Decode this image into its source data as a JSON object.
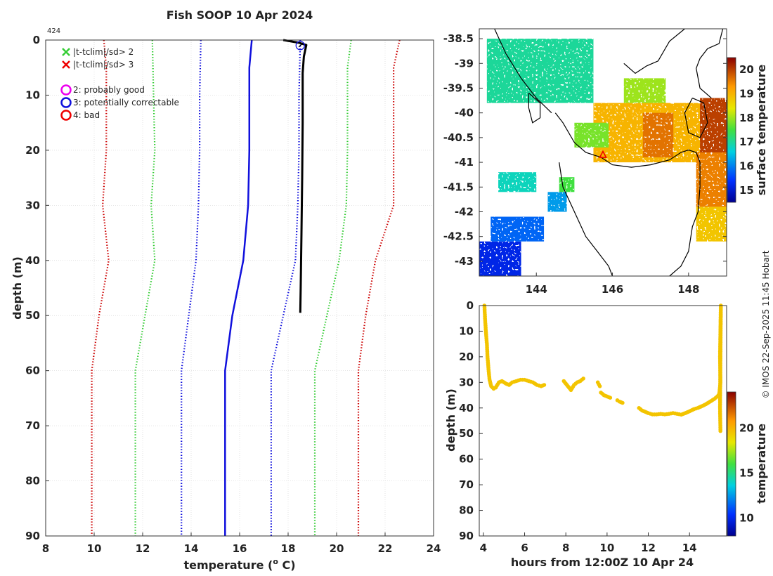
{
  "profile_id": "424",
  "credit": "© IMOS 22-Sep-2025 11:45 Hobart",
  "colors": {
    "bright_red": "#ff0000",
    "dark_red": "#cc0000",
    "green": "#33cc33",
    "blue": "#1010dd",
    "magenta": "#ee00ee",
    "black": "#000000",
    "yellow": "#e8e800"
  },
  "chart_data": [
    {
      "id": "profile",
      "type": "line",
      "title": "Fish SOOP 10 Apr 2024",
      "xlabel": "temperature (",
      "xlabel_sup": "o",
      "xlabel_end": " C)",
      "ylabel": "depth (m)",
      "xlim": [
        8,
        24
      ],
      "ylim": [
        0,
        90
      ],
      "xticks": [
        8,
        10,
        12,
        14,
        16,
        18,
        20,
        22,
        24
      ],
      "yticks": [
        0,
        10,
        20,
        30,
        40,
        50,
        60,
        70,
        80,
        90
      ],
      "grid": true,
      "legend": [
        {
          "marker": "x",
          "color": "#33cc33",
          "label": "|t-tclim|/sd> 2"
        },
        {
          "marker": "x",
          "color": "#ee0000",
          "label": "|t-tclim|/sd> 3"
        },
        {
          "marker": "o",
          "color": "#ee00ee",
          "label": "2: probably good"
        },
        {
          "marker": "o",
          "color": "#1010dd",
          "label": "3: potentially correctable"
        },
        {
          "marker": "o",
          "color": "#ee0000",
          "label": "4: bad"
        }
      ],
      "series": [
        {
          "name": "climatology mean",
          "style": "solid",
          "color": "#1010dd",
          "points": [
            [
              16.5,
              0
            ],
            [
              16.4,
              5
            ],
            [
              16.4,
              15
            ],
            [
              16.4,
              20
            ],
            [
              16.35,
              30
            ],
            [
              16.15,
              40
            ],
            [
              15.7,
              50
            ],
            [
              15.4,
              60
            ],
            [
              15.4,
              90
            ]
          ]
        },
        {
          "name": "clim -1sd",
          "style": "dotted",
          "color": "#1010dd",
          "points": [
            [
              14.4,
              0
            ],
            [
              14.35,
              10
            ],
            [
              14.35,
              20
            ],
            [
              14.3,
              30
            ],
            [
              14.2,
              40
            ],
            [
              13.9,
              50
            ],
            [
              13.6,
              60
            ],
            [
              13.6,
              90
            ]
          ]
        },
        {
          "name": "clim +1sd",
          "style": "dotted",
          "color": "#1010dd",
          "points": [
            [
              18.5,
              0
            ],
            [
              18.45,
              10
            ],
            [
              18.45,
              20
            ],
            [
              18.4,
              30
            ],
            [
              18.3,
              40
            ],
            [
              17.8,
              50
            ],
            [
              17.3,
              60
            ],
            [
              17.3,
              90
            ]
          ]
        },
        {
          "name": "clim -2sd",
          "style": "dotted",
          "color": "#33cc33",
          "points": [
            [
              12.4,
              0
            ],
            [
              12.45,
              10
            ],
            [
              12.5,
              20
            ],
            [
              12.35,
              30
            ],
            [
              12.5,
              40
            ],
            [
              12.1,
              50
            ],
            [
              11.7,
              60
            ],
            [
              11.7,
              90
            ]
          ]
        },
        {
          "name": "clim +2sd",
          "style": "dotted",
          "color": "#33cc33",
          "points": [
            [
              20.6,
              0
            ],
            [
              20.45,
              5
            ],
            [
              20.45,
              20
            ],
            [
              20.4,
              30
            ],
            [
              20.1,
              40
            ],
            [
              19.6,
              50
            ],
            [
              19.1,
              60
            ],
            [
              19.1,
              90
            ]
          ]
        },
        {
          "name": "clim -3sd",
          "style": "dotted",
          "color": "#cc0000",
          "points": [
            [
              10.4,
              0
            ],
            [
              10.5,
              5
            ],
            [
              10.5,
              20
            ],
            [
              10.35,
              30
            ],
            [
              10.6,
              40
            ],
            [
              10.2,
              50
            ],
            [
              9.9,
              60
            ],
            [
              9.9,
              90
            ]
          ]
        },
        {
          "name": "clim +3sd",
          "style": "dotted",
          "color": "#cc0000",
          "points": [
            [
              22.6,
              0
            ],
            [
              22.35,
              5
            ],
            [
              22.35,
              20
            ],
            [
              22.35,
              30
            ],
            [
              21.6,
              40
            ],
            [
              21.2,
              50
            ],
            [
              20.9,
              60
            ],
            [
              20.9,
              90
            ]
          ]
        },
        {
          "name": "observed profile",
          "style": "solid",
          "color": "#000000",
          "points": [
            [
              17.8,
              0
            ],
            [
              18.45,
              0.5
            ],
            [
              18.75,
              0.9
            ],
            [
              18.65,
              3
            ],
            [
              18.6,
              6
            ],
            [
              18.6,
              15
            ],
            [
              18.58,
              25
            ],
            [
              18.55,
              35
            ],
            [
              18.52,
              45
            ],
            [
              18.5,
              49.5
            ]
          ]
        }
      ],
      "flag_marker": {
        "flag": "3: potentially correctable",
        "x": 18.5,
        "y": 1
      }
    },
    {
      "id": "sst_map",
      "type": "heatmap",
      "xlim": [
        142.5,
        149
      ],
      "ylim": [
        -43.3,
        -38.3
      ],
      "xticks": [
        144,
        146,
        148
      ],
      "yticks": [
        -38.5,
        -39,
        -39.5,
        -40,
        -40.5,
        -41,
        -41.5,
        -42,
        -42.5,
        -43
      ],
      "colorbar_label": "surface temperature",
      "colorbar_range": [
        14.5,
        20.5
      ],
      "colorbar_ticks": [
        15,
        16,
        17,
        18,
        19,
        20
      ],
      "profile_location": [
        145.75,
        -40.85
      ],
      "coastline": [
        [
          [
            146.3,
            -39.0
          ],
          [
            146.6,
            -39.2
          ],
          [
            146.9,
            -39.05
          ],
          [
            147.2,
            -38.95
          ],
          [
            147.5,
            -38.55
          ],
          [
            147.9,
            -38.3
          ]
        ],
        [
          [
            148.9,
            -38.3
          ],
          [
            148.8,
            -38.6
          ],
          [
            148.5,
            -38.7
          ],
          [
            148.3,
            -38.9
          ],
          [
            148.2,
            -39.1
          ],
          [
            148.3,
            -39.5
          ],
          [
            148.6,
            -39.7
          ]
        ],
        [
          [
            144.5,
            -40.0
          ],
          [
            144.7,
            -40.2
          ],
          [
            145.0,
            -40.6
          ],
          [
            145.3,
            -40.8
          ],
          [
            145.7,
            -40.9
          ],
          [
            146.0,
            -41.05
          ],
          [
            146.5,
            -41.1
          ],
          [
            147.0,
            -41.05
          ],
          [
            147.5,
            -40.95
          ],
          [
            147.8,
            -40.8
          ],
          [
            148.0,
            -40.75
          ],
          [
            148.2,
            -40.8
          ],
          [
            148.3,
            -41.0
          ],
          [
            148.3,
            -41.5
          ],
          [
            148.25,
            -42.0
          ],
          [
            148.1,
            -42.3
          ],
          [
            148.0,
            -42.8
          ],
          [
            147.8,
            -43.1
          ],
          [
            147.5,
            -43.3
          ]
        ],
        [
          [
            144.6,
            -41.0
          ],
          [
            144.7,
            -41.5
          ],
          [
            145.0,
            -42.0
          ],
          [
            145.3,
            -42.5
          ],
          [
            145.6,
            -42.8
          ],
          [
            145.9,
            -43.1
          ],
          [
            146.0,
            -43.3
          ]
        ],
        [
          [
            142.9,
            -38.3
          ],
          [
            143.2,
            -38.8
          ],
          [
            143.6,
            -39.3
          ],
          [
            144.0,
            -39.7
          ],
          [
            144.4,
            -40.0
          ]
        ],
        [
          [
            143.8,
            -39.6
          ],
          [
            144.1,
            -39.8
          ],
          [
            144.1,
            -40.1
          ],
          [
            143.9,
            -40.2
          ],
          [
            143.8,
            -39.9
          ],
          [
            143.8,
            -39.6
          ]
        ],
        [
          [
            148.1,
            -39.7
          ],
          [
            148.4,
            -39.8
          ],
          [
            148.5,
            -40.2
          ],
          [
            148.3,
            -40.5
          ],
          [
            148.0,
            -40.4
          ],
          [
            147.9,
            -40.0
          ],
          [
            148.1,
            -39.7
          ]
        ]
      ],
      "sst_patches": [
        {
          "lon": [
            145.5,
            148.6
          ],
          "lat": [
            -41.0,
            -39.8
          ],
          "value": 19.0
        },
        {
          "lon": [
            146.8,
            147.6
          ],
          "lat": [
            -40.9,
            -40.0
          ],
          "value": 19.6
        },
        {
          "lon": [
            148.3,
            149.0
          ],
          "lat": [
            -40.8,
            -39.7
          ],
          "value": 20.0
        },
        {
          "lon": [
            148.2,
            149.0
          ],
          "lat": [
            -41.9,
            -40.8
          ],
          "value": 19.5
        },
        {
          "lon": [
            148.2,
            149.0
          ],
          "lat": [
            -42.6,
            -41.9
          ],
          "value": 18.8
        },
        {
          "lon": [
            146.3,
            147.4
          ],
          "lat": [
            -39.8,
            -39.3
          ],
          "value": 18.0
        },
        {
          "lon": [
            145.0,
            145.9
          ],
          "lat": [
            -40.7,
            -40.2
          ],
          "value": 17.8
        },
        {
          "lon": [
            144.3,
            144.8
          ],
          "lat": [
            -42.0,
            -41.6
          ],
          "value": 16.2
        },
        {
          "lon": [
            144.6,
            145.0
          ],
          "lat": [
            -41.6,
            -41.3
          ],
          "value": 17.5
        },
        {
          "lon": [
            142.5,
            143.6
          ],
          "lat": [
            -43.3,
            -42.6
          ],
          "value": 15.2
        },
        {
          "lon": [
            142.8,
            144.2
          ],
          "lat": [
            -42.6,
            -42.1
          ],
          "value": 15.8
        },
        {
          "lon": [
            143.0,
            144.0
          ],
          "lat": [
            -41.6,
            -41.2
          ],
          "value": 16.8
        },
        {
          "lon": [
            142.7,
            145.5
          ],
          "lat": [
            -39.8,
            -38.5
          ],
          "value": 17.0
        }
      ]
    },
    {
      "id": "depth_time",
      "type": "scatter",
      "xlabel": "hours from 12:00Z 10 Apr 24",
      "ylabel": "depth (m)",
      "xlim": [
        3.8,
        15.8
      ],
      "ylim": [
        0,
        90
      ],
      "xticks": [
        4,
        6,
        8,
        10,
        12,
        14
      ],
      "yticks": [
        0,
        10,
        20,
        30,
        40,
        50,
        60,
        70,
        80,
        90
      ],
      "colorbar_label": "temperature",
      "colorbar_range": [
        8,
        24
      ],
      "colorbar_ticks": [
        10,
        15,
        20
      ],
      "point_temperature": 19.5,
      "tracks": [
        [
          [
            4.05,
            0
          ],
          [
            4.08,
            5
          ],
          [
            4.12,
            10
          ],
          [
            4.17,
            15
          ],
          [
            4.2,
            20
          ],
          [
            4.25,
            25
          ],
          [
            4.3,
            29
          ],
          [
            4.38,
            31.5
          ],
          [
            4.5,
            32.5
          ],
          [
            4.6,
            32
          ]
        ],
        [
          [
            4.6,
            32
          ],
          [
            4.75,
            30
          ],
          [
            4.9,
            29.5
          ],
          [
            5.1,
            30.5
          ],
          [
            5.25,
            31
          ],
          [
            5.4,
            30
          ],
          [
            5.6,
            29.5
          ],
          [
            5.8,
            29
          ],
          [
            6.0,
            29
          ],
          [
            6.2,
            29.5
          ],
          [
            6.4,
            30
          ],
          [
            6.6,
            31
          ],
          [
            6.8,
            31.5
          ],
          [
            6.95,
            31
          ]
        ],
        [
          [
            7.9,
            29.5
          ],
          [
            8.0,
            30.5
          ],
          [
            8.1,
            31.5
          ],
          [
            8.25,
            33
          ],
          [
            8.4,
            31
          ],
          [
            8.55,
            30
          ],
          [
            8.7,
            29.5
          ],
          [
            8.85,
            28.5
          ]
        ],
        [
          [
            9.55,
            30
          ],
          [
            9.65,
            31.5
          ]
        ],
        [
          [
            9.7,
            34
          ],
          [
            9.85,
            35
          ],
          [
            10.0,
            35.5
          ],
          [
            10.15,
            36
          ]
        ],
        [
          [
            10.5,
            37
          ],
          [
            10.6,
            37.5
          ],
          [
            10.75,
            38
          ]
        ],
        [
          [
            11.55,
            40
          ],
          [
            11.7,
            41
          ],
          [
            11.85,
            41.5
          ],
          [
            12.0,
            42
          ],
          [
            12.2,
            42.5
          ],
          [
            12.4,
            42.5
          ],
          [
            12.6,
            42.3
          ],
          [
            12.8,
            42.5
          ],
          [
            13.0,
            42.3
          ],
          [
            13.2,
            42
          ],
          [
            13.4,
            42.3
          ],
          [
            13.6,
            42.6
          ],
          [
            13.8,
            42
          ],
          [
            14.0,
            41.3
          ],
          [
            14.2,
            40.5
          ],
          [
            14.4,
            40
          ],
          [
            14.6,
            39.3
          ],
          [
            14.8,
            38.5
          ],
          [
            15.0,
            37.5
          ],
          [
            15.2,
            36.5
          ],
          [
            15.35,
            35.5
          ],
          [
            15.45,
            34.5
          ]
        ],
        [
          [
            15.45,
            34
          ],
          [
            15.5,
            30
          ],
          [
            15.48,
            20
          ],
          [
            15.5,
            10
          ],
          [
            15.52,
            0
          ],
          [
            15.48,
            40
          ],
          [
            15.5,
            49
          ]
        ]
      ]
    }
  ]
}
